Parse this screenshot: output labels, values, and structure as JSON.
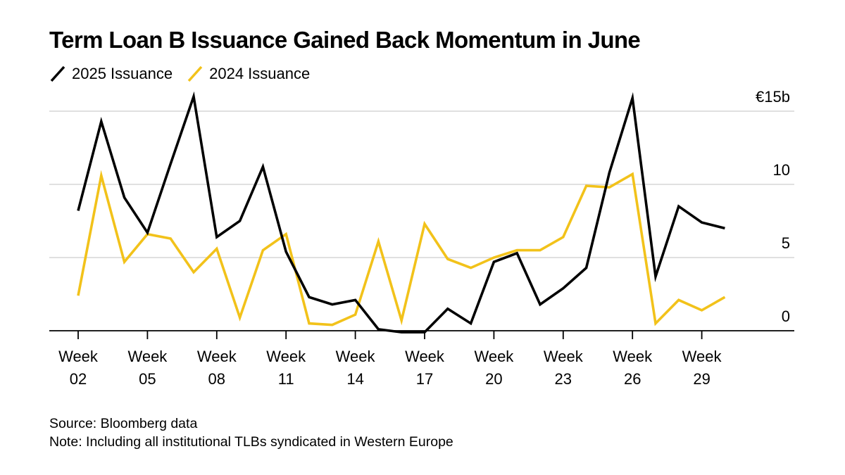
{
  "chart_data": {
    "type": "line",
    "title": "Term Loan B Issuance Gained Back Momentum in June",
    "unit_label": "€15b",
    "x": [
      2,
      3,
      4,
      5,
      6,
      7,
      8,
      9,
      10,
      11,
      12,
      13,
      14,
      15,
      16,
      17,
      18,
      19,
      20,
      21,
      22,
      23,
      24,
      25,
      26,
      27,
      28,
      29,
      30
    ],
    "x_ticks": [
      {
        "week": 2,
        "line1": "Week",
        "line2": "02"
      },
      {
        "week": 5,
        "line1": "Week",
        "line2": "05"
      },
      {
        "week": 8,
        "line1": "Week",
        "line2": "08"
      },
      {
        "week": 11,
        "line1": "Week",
        "line2": "11"
      },
      {
        "week": 14,
        "line1": "Week",
        "line2": "14"
      },
      {
        "week": 17,
        "line1": "Week",
        "line2": "17"
      },
      {
        "week": 20,
        "line1": "Week",
        "line2": "20"
      },
      {
        "week": 23,
        "line1": "Week",
        "line2": "23"
      },
      {
        "week": 26,
        "line1": "Week",
        "line2": "26"
      },
      {
        "week": 29,
        "line1": "Week",
        "line2": "29"
      }
    ],
    "y_ticks": [
      {
        "value": 0,
        "label": "0"
      },
      {
        "value": 5,
        "label": "5"
      },
      {
        "value": 10,
        "label": "10"
      },
      {
        "value": 15,
        "label": "€15b"
      }
    ],
    "ylim": [
      0,
      15
    ],
    "xlim": [
      2,
      32
    ],
    "series": [
      {
        "name": "2025 Issuance",
        "color": "#000000",
        "values": [
          8.2,
          14.3,
          9.1,
          6.7,
          11.4,
          16.0,
          6.4,
          7.5,
          11.2,
          5.4,
          2.3,
          1.8,
          2.1,
          0.1,
          -0.1,
          -0.1,
          1.5,
          0.5,
          4.7,
          5.3,
          1.8,
          2.9,
          4.3,
          10.8,
          15.9,
          3.7,
          8.5,
          7.4,
          7.0
        ]
      },
      {
        "name": "2024 Issuance",
        "color": "#F2C21A",
        "values": [
          2.4,
          10.6,
          4.7,
          6.6,
          6.3,
          4.0,
          5.6,
          0.9,
          5.5,
          6.6,
          0.5,
          0.4,
          1.1,
          6.1,
          0.7,
          7.3,
          4.9,
          4.3,
          5.0,
          5.5,
          5.5,
          6.4,
          9.9,
          9.8,
          10.7,
          0.5,
          2.1,
          1.4,
          2.3
        ]
      }
    ]
  },
  "footer": {
    "source": "Source: Bloomberg data",
    "note": "Note: Including all institutional TLBs syndicated in Western Europe"
  }
}
